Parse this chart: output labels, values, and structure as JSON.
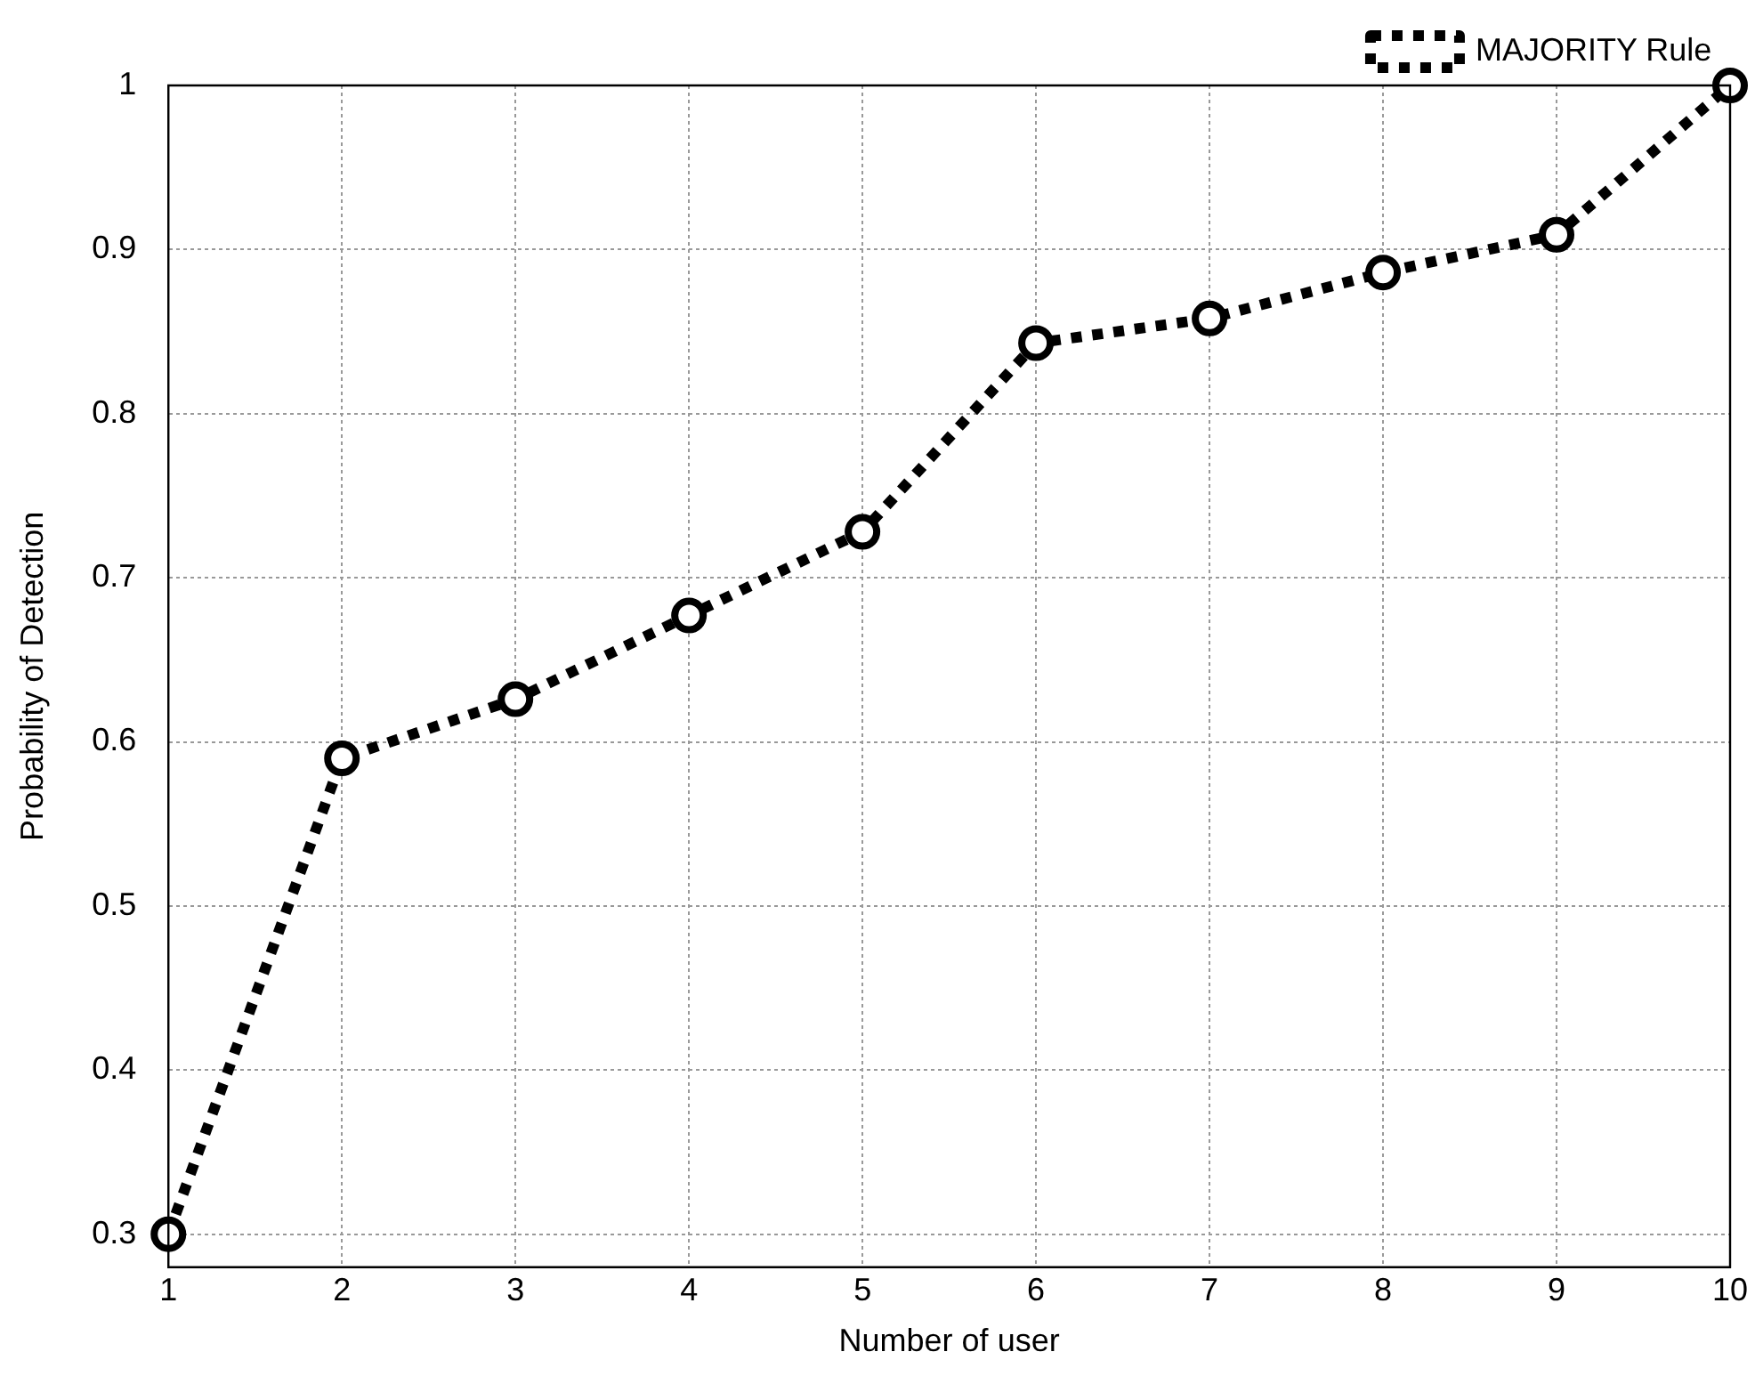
{
  "chart_data": {
    "type": "line",
    "xlabel": "Number of user",
    "ylabel": "Probability of Detection",
    "x": [
      1,
      2,
      3,
      4,
      5,
      6,
      7,
      8,
      9,
      10
    ],
    "series": [
      {
        "name": "MAJORITY Rule",
        "color": "#000000",
        "values": [
          0.3,
          0.59,
          0.626,
          0.677,
          0.728,
          0.843,
          0.858,
          0.886,
          0.909,
          1.0
        ]
      }
    ],
    "xlim": [
      1,
      10
    ],
    "xticks": [
      1,
      2,
      3,
      4,
      5,
      6,
      7,
      8,
      9,
      10
    ],
    "ylim": [
      0.28,
      1
    ],
    "yticks": [
      0.3,
      0.4,
      0.5,
      0.6,
      0.7,
      0.8,
      0.9,
      1
    ],
    "grid": true,
    "legend": "top right",
    "marker": "circle",
    "line_style": "dotted"
  }
}
